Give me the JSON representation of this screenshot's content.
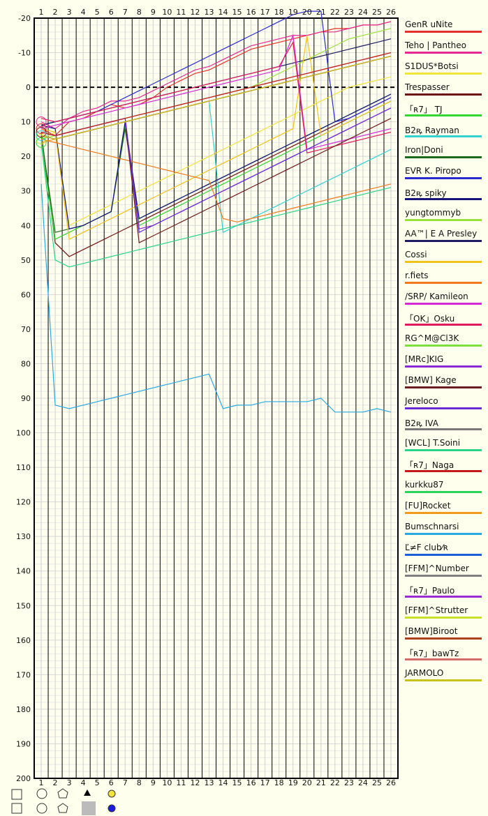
{
  "chart_data": {
    "type": "line",
    "x_ticks": [
      "1",
      "2",
      "3",
      "4",
      "5",
      "6",
      "7",
      "8",
      "9",
      "10",
      "11",
      "12",
      "13",
      "14",
      "15",
      "16",
      "17",
      "18",
      "19",
      "20",
      "21",
      "22",
      "23",
      "24",
      "25",
      "26"
    ],
    "y_ticks": [
      "-20",
      "-10",
      "0",
      "10",
      "20",
      "30",
      "40",
      "50",
      "60",
      "70",
      "80",
      "90",
      "100",
      "110",
      "120",
      "130",
      "140",
      "150",
      "160",
      "170",
      "180",
      "190",
      "200"
    ],
    "ylim": [
      -20,
      200
    ],
    "xlim": [
      0.5,
      26.5
    ],
    "baseline_y": 0,
    "series": [
      {
        "name": "GenR uNite",
        "color": "#e8302a",
        "values": [
          12,
          14,
          10,
          9,
          7,
          5,
          6,
          5,
          3,
          0,
          -2,
          -4,
          -5,
          -7,
          -9,
          -11,
          -12,
          -13,
          -14,
          -15,
          -16,
          -17,
          -17,
          -18,
          -18,
          -19
        ]
      },
      {
        "name": "Teho | Pantheo",
        "color": "#e3298d",
        "values": [
          10,
          12,
          9,
          7,
          6,
          4,
          4,
          3,
          1,
          -1,
          -3,
          -5,
          -6,
          -8,
          -10,
          -12,
          -13,
          -14,
          -15,
          -15,
          -16,
          -16,
          -17,
          -18,
          -18,
          -19
        ]
      },
      {
        "name": "S1DUS*Botsi",
        "color": "#f2e43a",
        "values": [
          15,
          13,
          40,
          38,
          36,
          34,
          32,
          30,
          28,
          26,
          24,
          22,
          20,
          18,
          16,
          14,
          12,
          10,
          8,
          6,
          4,
          2,
          0,
          -1,
          -2,
          -3
        ]
      },
      {
        "name": "Trespasser",
        "color": "#6b1212",
        "values": [
          13,
          45,
          49,
          47,
          45,
          43,
          41,
          39,
          37,
          35,
          33,
          31,
          29,
          27,
          25,
          23,
          21,
          19,
          17,
          15,
          13,
          11,
          9,
          7,
          5,
          3
        ]
      },
      {
        "name": "「ʀ7」 TJ",
        "color": "#33d633",
        "values": [
          16,
          44,
          42,
          40,
          38,
          36,
          11,
          40,
          38,
          36,
          34,
          32,
          30,
          28,
          26,
          24,
          22,
          20,
          18,
          16,
          14,
          12,
          10,
          8,
          6,
          4
        ]
      },
      {
        "name": "B2ꝶ Rayman",
        "color": "#34d1d1",
        "values": [
          14,
          15,
          14,
          13,
          12,
          11,
          10,
          9,
          8,
          7,
          6,
          5,
          4,
          42,
          40,
          38,
          36,
          34,
          32,
          30,
          28,
          26,
          24,
          22,
          20,
          18
        ]
      },
      {
        "name": "Iron|Doni",
        "color": "#1c6b1c",
        "values": [
          14,
          42,
          41,
          40,
          38,
          36,
          12,
          38,
          36,
          34,
          32,
          30,
          28,
          26,
          24,
          22,
          20,
          18,
          16,
          14,
          12,
          10,
          8,
          6,
          4,
          2
        ]
      },
      {
        "name": "EVR K. Piropo",
        "color": "#2a2ad1",
        "values": [
          11,
          10,
          9,
          8,
          7,
          5,
          3,
          1,
          -1,
          -3,
          -5,
          -7,
          -9,
          -11,
          -13,
          -15,
          -17,
          -19,
          -21,
          -22,
          -22,
          10,
          9,
          7,
          5,
          3
        ]
      },
      {
        "name": "B2ꝶ spiky",
        "color": "#141478",
        "values": [
          11,
          12,
          41,
          40,
          38,
          36,
          10,
          38,
          36,
          34,
          32,
          30,
          28,
          26,
          24,
          22,
          20,
          18,
          16,
          14,
          12,
          10,
          8,
          6,
          4,
          2
        ]
      },
      {
        "name": "yungtommyb",
        "color": "#9ae23a",
        "values": [
          15,
          14,
          13,
          12,
          11,
          10,
          9,
          8,
          7,
          6,
          5,
          4,
          3,
          2,
          1,
          0,
          -2,
          -4,
          -6,
          -8,
          -10,
          -12,
          -14,
          -15,
          -16,
          -17
        ]
      },
      {
        "name": "AA™| E A Presley",
        "color": "#1c1c5e",
        "values": [
          11,
          10,
          9,
          8,
          7,
          6,
          5,
          4,
          3,
          2,
          1,
          0,
          -1,
          -2,
          -3,
          -4,
          -5,
          -6,
          -7,
          -8,
          -9,
          -10,
          -11,
          -12,
          -13,
          -14
        ]
      },
      {
        "name": "Cossi",
        "color": "#f0c21c",
        "values": [
          12,
          13,
          44,
          42,
          40,
          38,
          36,
          34,
          32,
          30,
          28,
          26,
          24,
          22,
          20,
          18,
          16,
          14,
          12,
          -15,
          14,
          12,
          10,
          8,
          6,
          4
        ]
      },
      {
        "name": "r.fiets",
        "color": "#f07a1c",
        "values": [
          15,
          16,
          17,
          18,
          19,
          20,
          21,
          22,
          23,
          24,
          25,
          26,
          27,
          38,
          39,
          38,
          37,
          36,
          35,
          34,
          33,
          32,
          31,
          30,
          29,
          28
        ]
      },
      {
        "name": "/SRP/ Kamileon",
        "color": "#d42ad4",
        "values": [
          12,
          11,
          10,
          9,
          8,
          7,
          6,
          5,
          4,
          3,
          2,
          1,
          0,
          -1,
          -2,
          -3,
          -4,
          -5,
          -15,
          18,
          17,
          16,
          15,
          14,
          13,
          12
        ]
      },
      {
        "name": "「OK」Osku",
        "color": "#e01a5c",
        "values": [
          9,
          10,
          9,
          8,
          7,
          6,
          5,
          4,
          3,
          2,
          1,
          0,
          -1,
          -2,
          -3,
          -4,
          -5,
          -6,
          -13,
          19,
          18,
          17,
          16,
          15,
          14,
          13
        ]
      },
      {
        "name": "RG^M@Cl3K",
        "color": "#7be03a",
        "values": [
          14,
          15,
          14,
          13,
          12,
          11,
          10,
          9,
          8,
          7,
          6,
          5,
          4,
          3,
          2,
          1,
          0,
          -1,
          -2,
          -3,
          -4,
          -5,
          -6,
          -7,
          -8,
          -9
        ]
      },
      {
        "name": "[MRc]KIG",
        "color": "#8a2ad4",
        "values": [
          13,
          14,
          13,
          12,
          11,
          10,
          9,
          41,
          40,
          38,
          36,
          34,
          32,
          30,
          28,
          26,
          24,
          22,
          20,
          18,
          16,
          14,
          12,
          10,
          8,
          6
        ]
      },
      {
        "name": "[BMW] Kage",
        "color": "#6b1c1c",
        "values": [
          14,
          15,
          14,
          13,
          12,
          11,
          10,
          45,
          43,
          41,
          39,
          37,
          35,
          33,
          31,
          29,
          27,
          25,
          23,
          21,
          19,
          17,
          15,
          13,
          11,
          9
        ]
      },
      {
        "name": "Jereloco",
        "color": "#6a2ad4",
        "values": [
          13,
          14,
          13,
          12,
          11,
          10,
          9,
          42,
          40,
          38,
          36,
          34,
          32,
          30,
          28,
          26,
          24,
          22,
          20,
          18,
          16,
          14,
          12,
          10,
          8,
          6
        ]
      },
      {
        "name": "B2ꝶ IVA",
        "color": "#777777",
        "values": [
          13,
          14,
          13,
          12,
          11,
          10,
          9,
          8,
          7,
          6,
          5,
          4,
          3,
          2,
          1,
          0,
          -1,
          -2,
          -3,
          -4,
          -5,
          -6,
          -7,
          -8,
          -9,
          -10
        ]
      },
      {
        "name": "[WCL] T.Soini",
        "color": "#2ad48a",
        "values": [
          16,
          50,
          52,
          51,
          50,
          49,
          48,
          47,
          46,
          45,
          44,
          43,
          42,
          41,
          40,
          39,
          38,
          37,
          36,
          35,
          34,
          33,
          32,
          31,
          30,
          29
        ]
      },
      {
        "name": "「ʀ7」Naga",
        "color": "#c41a1a",
        "values": [
          13,
          14,
          13,
          12,
          11,
          10,
          9,
          8,
          7,
          6,
          5,
          4,
          3,
          2,
          1,
          0,
          -1,
          -2,
          -3,
          -4,
          -5,
          -6,
          -7,
          -8,
          -9,
          -10
        ]
      },
      {
        "name": "kurkku87",
        "color": "#2ad45c",
        "values": [
          14,
          15,
          14,
          13,
          12,
          11,
          10,
          9,
          8,
          7,
          6,
          5,
          4,
          3,
          2,
          1,
          0,
          -1,
          -2,
          -3,
          -4,
          -5,
          -6,
          -7,
          -8,
          -9
        ]
      },
      {
        "name": "[FU]Rocket",
        "color": "#f09a1c",
        "values": [
          16,
          15,
          14,
          13,
          12,
          11,
          10,
          9,
          8,
          7,
          6,
          5,
          4,
          3,
          2,
          1,
          0,
          -1,
          -2,
          -3,
          -4,
          -5,
          -6,
          -7,
          -8,
          -9
        ]
      },
      {
        "name": "Bumschnarsi",
        "color": "#2aa8e0",
        "values": [
          28,
          92,
          93,
          92,
          91,
          90,
          89,
          88,
          87,
          86,
          85,
          84,
          83,
          93,
          92,
          92,
          91,
          91,
          91,
          91,
          90,
          94,
          94,
          94,
          93,
          94
        ]
      },
      {
        "name": "Ľ≠F club⁄ʀ",
        "color": "#1c5ed4",
        "values": [
          14,
          15,
          14,
          13,
          12,
          11,
          10,
          9,
          8,
          7,
          6,
          5,
          4,
          3,
          2,
          1,
          0,
          -1,
          -2,
          -3,
          -4,
          -5,
          -6,
          -7,
          -8,
          -9
        ]
      },
      {
        "name": "[FFM]^Number",
        "color": "#808080",
        "values": [
          14,
          15,
          14,
          13,
          12,
          11,
          10,
          9,
          8,
          7,
          6,
          5,
          4,
          3,
          2,
          1,
          0,
          -1,
          -2,
          -3,
          -4,
          -5,
          -6,
          -7,
          -8,
          -9
        ]
      },
      {
        "name": "「ʀ7」Paulo",
        "color": "#9a2ad4",
        "values": [
          14,
          15,
          14,
          13,
          12,
          11,
          10,
          9,
          8,
          7,
          6,
          5,
          4,
          3,
          2,
          1,
          0,
          -1,
          -2,
          -3,
          -4,
          -5,
          -6,
          -7,
          -8,
          -9
        ]
      },
      {
        "name": "[FFM]^Strutter",
        "color": "#c8e02a",
        "values": [
          14,
          15,
          14,
          13,
          12,
          11,
          10,
          9,
          8,
          7,
          6,
          5,
          4,
          3,
          2,
          1,
          0,
          -1,
          -2,
          -3,
          -4,
          -5,
          -6,
          -7,
          -8,
          -9
        ]
      },
      {
        "name": "[BMW]Biroot",
        "color": "#b0401c",
        "values": [
          14,
          15,
          14,
          13,
          12,
          11,
          10,
          9,
          8,
          7,
          6,
          5,
          4,
          3,
          2,
          1,
          0,
          -1,
          -2,
          -3,
          -4,
          -5,
          -6,
          -7,
          -8,
          -9
        ]
      },
      {
        "name": "「ʀ7」bawTz",
        "color": "#d46a6a",
        "values": [
          14,
          15,
          14,
          13,
          12,
          11,
          10,
          9,
          8,
          7,
          6,
          5,
          4,
          3,
          2,
          1,
          0,
          -1,
          -2,
          -3,
          -4,
          -5,
          -6,
          -7,
          -8,
          -9
        ]
      },
      {
        "name": "JARMOLO",
        "color": "#c8c21c",
        "values": [
          14,
          15,
          14,
          13,
          12,
          11,
          10,
          9,
          8,
          7,
          6,
          5,
          4,
          3,
          2,
          1,
          0,
          -1,
          -2,
          -3,
          -4,
          -5,
          -6,
          -7,
          -8,
          -9
        ]
      }
    ],
    "bottom_legend_icons": [
      "square",
      "circle",
      "pentagon",
      "triangle",
      "yellow-dot",
      "square",
      "circle",
      "pentagon",
      "gray-box",
      "blue-dot"
    ]
  }
}
